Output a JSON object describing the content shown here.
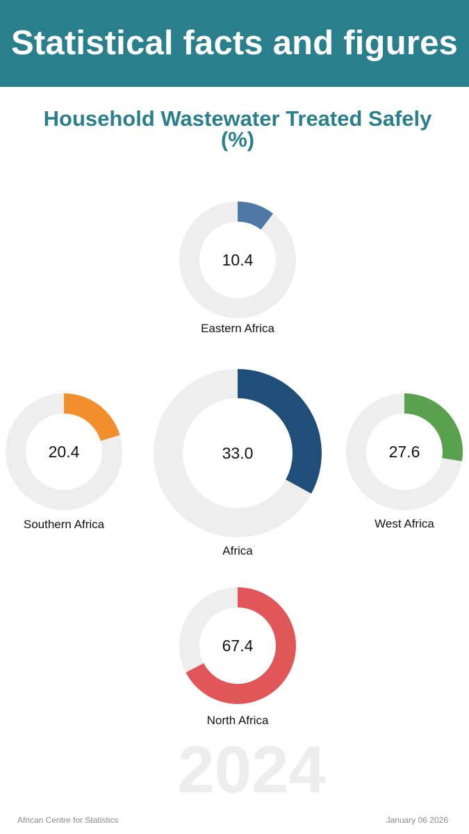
{
  "header": {
    "title": "Statistical facts and figures"
  },
  "chart_data": {
    "type": "donut",
    "title": "Household Wastewater Treated Safely (%)",
    "unit": "%",
    "year_watermark": "2024",
    "track_color": "#eeeeee",
    "series": [
      {
        "name": "Eastern Africa",
        "value": 10.4,
        "value_label": "10.4",
        "color": "#4e79a7"
      },
      {
        "name": "Southern Africa",
        "value": 20.4,
        "value_label": "20.4",
        "color": "#f28e2b"
      },
      {
        "name": "Africa",
        "value": 33.0,
        "value_label": "33.0",
        "color": "#1f4e79"
      },
      {
        "name": "West Africa",
        "value": 27.6,
        "value_label": "27.6",
        "color": "#59a14f"
      },
      {
        "name": "North Africa",
        "value": 67.4,
        "value_label": "67.4",
        "color": "#e15759"
      }
    ]
  },
  "footer": {
    "source": "African Centre for Statistics",
    "date": "January 06 2026"
  }
}
